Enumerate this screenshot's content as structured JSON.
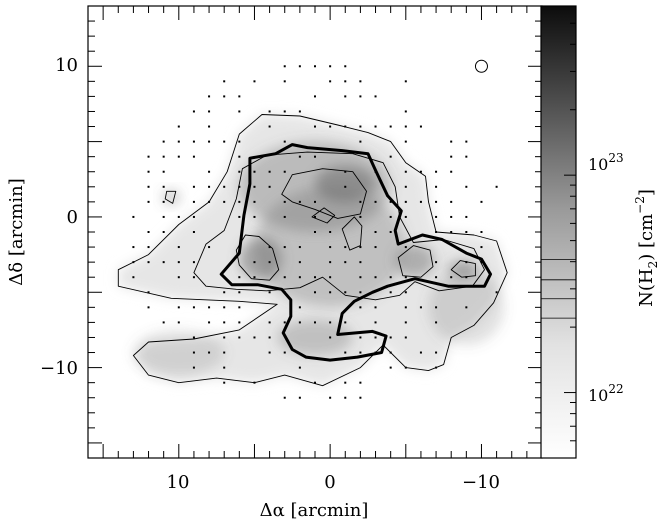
{
  "chart_data": {
    "type": "heatmap",
    "title": "",
    "xlabel": "Δα [arcmin]",
    "ylabel": "Δδ [arcmin]",
    "xlim": [
      16,
      -14
    ],
    "ylim": [
      -16,
      14
    ],
    "x_ticks": [
      10,
      0,
      -10
    ],
    "x_tick_labels": [
      "10",
      "0",
      "−10"
    ],
    "y_ticks": [
      10,
      0,
      -10
    ],
    "y_tick_labels": [
      "10",
      "0",
      "−10"
    ],
    "grid": false,
    "beam_marker": {
      "x": -10,
      "y": 10
    },
    "colorbar": {
      "label_main": "N(H",
      "label_sub": "2",
      "label_unit": ") [cm",
      "label_exp": "−2",
      "label_close": "]",
      "scale": "log",
      "range": [
        5e+21,
        6e+23
      ],
      "tick_base": "10",
      "tick_labels": [
        {
          "value": 1e+22,
          "exp": "22"
        },
        {
          "value": 1e+23,
          "exp": "23"
        }
      ],
      "contour_levels": [
        2.2e+22,
        2.7e+22,
        3.3e+22,
        4.1e+22
      ]
    },
    "contours": [
      {
        "level": "outer",
        "style": "thin",
        "points": [
          [
            14,
            -3.5
          ],
          [
            12,
            -2.5
          ],
          [
            10,
            -0.5
          ],
          [
            8,
            1
          ],
          [
            6.8,
            3
          ],
          [
            6,
            5.5
          ],
          [
            4.5,
            6.8
          ],
          [
            2,
            6.7
          ],
          [
            -0.5,
            6.1
          ],
          [
            -2.5,
            5.6
          ],
          [
            -4,
            5
          ],
          [
            -5,
            3.6
          ],
          [
            -6.3,
            2.7
          ],
          [
            -6.5,
            1
          ],
          [
            -7,
            -1
          ],
          [
            -9.5,
            -1.2
          ],
          [
            -11,
            -1.6
          ],
          [
            -11.7,
            -3.7
          ],
          [
            -10.8,
            -5.7
          ],
          [
            -9.5,
            -7.2
          ],
          [
            -8,
            -8
          ],
          [
            -7.5,
            -9.8
          ],
          [
            -6.5,
            -10.2
          ],
          [
            -5,
            -10
          ],
          [
            -3.5,
            -8.5
          ],
          [
            -2,
            -10
          ],
          [
            0.5,
            -11.2
          ],
          [
            3,
            -10.5
          ],
          [
            5,
            -11
          ],
          [
            7.5,
            -10.7
          ],
          [
            10,
            -11
          ],
          [
            12,
            -10.5
          ],
          [
            13,
            -9.2
          ],
          [
            12,
            -8.3
          ],
          [
            9,
            -8.1
          ],
          [
            6,
            -7.5
          ],
          [
            3.5,
            -5.8
          ],
          [
            6,
            -5.6
          ],
          [
            10.5,
            -5.4
          ],
          [
            14,
            -4.6
          ],
          [
            14,
            -3.5
          ]
        ]
      },
      {
        "level": "inner",
        "style": "thin",
        "points": [
          [
            9,
            -3.7
          ],
          [
            8.2,
            -1.8
          ],
          [
            7,
            -0.9
          ],
          [
            6.2,
            1.2
          ],
          [
            5.8,
            3.2
          ],
          [
            4.2,
            4.1
          ],
          [
            1.5,
            4.3
          ],
          [
            -1.5,
            4.2
          ],
          [
            -3.5,
            3.6
          ],
          [
            -4.3,
            2
          ],
          [
            -4.6,
            0
          ],
          [
            -5.5,
            -1.7
          ],
          [
            -7.5,
            -1.5
          ],
          [
            -9.5,
            -2.1
          ],
          [
            -10.2,
            -3.5
          ],
          [
            -9.4,
            -4.6
          ],
          [
            -7.2,
            -4.9
          ],
          [
            -5.6,
            -4.3
          ],
          [
            -4.6,
            -5.2
          ],
          [
            -3,
            -5.5
          ],
          [
            -1,
            -5.2
          ],
          [
            0.5,
            -4
          ],
          [
            2,
            -4.7
          ],
          [
            4.2,
            -4.9
          ],
          [
            6.2,
            -4.8
          ],
          [
            8.2,
            -4.6
          ],
          [
            9,
            -3.7
          ]
        ]
      },
      {
        "level": "core-left",
        "style": "thin",
        "points": [
          [
            6.2,
            -2.2
          ],
          [
            5.6,
            -1.2
          ],
          [
            4.7,
            -1.3
          ],
          [
            3.8,
            -2.1
          ],
          [
            3.4,
            -3.5
          ],
          [
            4,
            -4.2
          ],
          [
            5.2,
            -4.1
          ],
          [
            6,
            -3.2
          ],
          [
            6.2,
            -2.2
          ]
        ]
      },
      {
        "level": "core-north",
        "style": "thin",
        "points": [
          [
            3.2,
            1.5
          ],
          [
            2.5,
            2.8
          ],
          [
            0.5,
            3.2
          ],
          [
            -1.5,
            3
          ],
          [
            -2.4,
            1.7
          ],
          [
            -2,
            0.2
          ],
          [
            -0.5,
            -0.1
          ],
          [
            1,
            0.5
          ],
          [
            2.5,
            1
          ],
          [
            3.2,
            1.5
          ]
        ]
      },
      {
        "level": "core-small",
        "style": "thin",
        "points": [
          [
            1.2,
            0
          ],
          [
            0.4,
            0.6
          ],
          [
            -0.3,
            0.1
          ],
          [
            0.2,
            -0.4
          ],
          [
            1.2,
            0
          ]
        ]
      },
      {
        "level": "core-mid",
        "style": "thin",
        "points": [
          [
            -0.8,
            -0.8
          ],
          [
            -1.6,
            0
          ],
          [
            -2.1,
            -0.6
          ],
          [
            -2,
            -1.9
          ],
          [
            -1.3,
            -2.2
          ],
          [
            -0.8,
            -0.8
          ]
        ]
      },
      {
        "level": "core-east",
        "style": "thin",
        "points": [
          [
            -4.5,
            -2.7
          ],
          [
            -5.5,
            -1.9
          ],
          [
            -6.6,
            -2.2
          ],
          [
            -6.8,
            -3.3
          ],
          [
            -6,
            -4
          ],
          [
            -4.8,
            -3.9
          ],
          [
            -4.5,
            -2.7
          ]
        ]
      },
      {
        "level": "core-far-east",
        "style": "thin",
        "points": [
          [
            -8,
            -3.5
          ],
          [
            -8.6,
            -2.9
          ],
          [
            -9.6,
            -3.1
          ],
          [
            -9.6,
            -3.9
          ],
          [
            -8.7,
            -4
          ],
          [
            -8,
            -3.5
          ]
        ]
      },
      {
        "level": "isolated",
        "style": "thin",
        "points": [
          [
            10.8,
            1.7
          ],
          [
            10.2,
            1.7
          ],
          [
            10.4,
            0.9
          ],
          [
            10.9,
            1.2
          ],
          [
            10.8,
            1.7
          ]
        ]
      },
      {
        "level": "bold",
        "style": "bold",
        "points": [
          [
            7.2,
            -3.8
          ],
          [
            6,
            -2.4
          ],
          [
            5.7,
            0.1
          ],
          [
            5.3,
            2.2
          ],
          [
            5.3,
            3.9
          ],
          [
            3.6,
            4.2
          ],
          [
            2.5,
            4.8
          ],
          [
            1.5,
            4.6
          ],
          [
            -0.8,
            4.4
          ],
          [
            -2.5,
            4.2
          ],
          [
            -3,
            3.1
          ],
          [
            -3.8,
            1.4
          ],
          [
            -4.7,
            0.4
          ],
          [
            -4.3,
            -0.9
          ],
          [
            -4.5,
            -1.8
          ],
          [
            -6.1,
            -1.2
          ],
          [
            -7.4,
            -1.5
          ],
          [
            -9,
            -2.4
          ],
          [
            -10,
            -2.8
          ],
          [
            -10.6,
            -3.8
          ],
          [
            -10.2,
            -4.6
          ],
          [
            -7.8,
            -4.6
          ],
          [
            -5.6,
            -4.1
          ],
          [
            -3.8,
            -4.6
          ],
          [
            -2.8,
            -5
          ],
          [
            -1.6,
            -5.6
          ],
          [
            -0.8,
            -6.4
          ],
          [
            -0.5,
            -7.8
          ],
          [
            -2.8,
            -7.6
          ],
          [
            -3.7,
            -7.9
          ],
          [
            -3.4,
            -9
          ],
          [
            -1.8,
            -9.3
          ],
          [
            0,
            -9.5
          ],
          [
            1.6,
            -9.3
          ],
          [
            2.5,
            -8.8
          ],
          [
            3.1,
            -7.7
          ],
          [
            2.6,
            -6.6
          ],
          [
            2.6,
            -5.5
          ],
          [
            3.2,
            -4.8
          ],
          [
            4.8,
            -4.5
          ],
          [
            6.5,
            -4.5
          ],
          [
            7.2,
            -3.8
          ]
        ]
      }
    ],
    "emission_blobs": [
      {
        "x": 1,
        "y": 2,
        "rx": 5,
        "ry": 3,
        "intensity": 0.35
      },
      {
        "x": 0,
        "y": -2,
        "rx": 5,
        "ry": 4,
        "intensity": 0.3
      },
      {
        "x": -1,
        "y": 2.2,
        "rx": 2,
        "ry": 1.2,
        "intensity": 0.55
      },
      {
        "x": 4.6,
        "y": -2.8,
        "rx": 1.4,
        "ry": 1.4,
        "intensity": 0.5
      },
      {
        "x": -5.6,
        "y": -2.9,
        "rx": 1.3,
        "ry": 1.1,
        "intensity": 0.45
      },
      {
        "x": -8.8,
        "y": -3.5,
        "rx": 1,
        "ry": 0.6,
        "intensity": 0.5
      },
      {
        "x": 1,
        "y": -8,
        "rx": 2.5,
        "ry": 1.2,
        "intensity": 0.3
      },
      {
        "x": -9,
        "y": -6,
        "rx": 2.5,
        "ry": 2.5,
        "intensity": 0.2
      },
      {
        "x": 10,
        "y": -9,
        "rx": 3,
        "ry": 1.5,
        "intensity": 0.18
      },
      {
        "x": 10.5,
        "y": 1.3,
        "rx": 0.6,
        "ry": 0.5,
        "intensity": 0.35
      }
    ]
  }
}
